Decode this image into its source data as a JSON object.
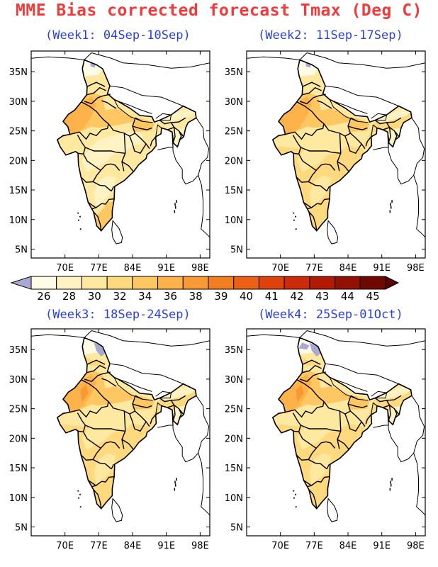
{
  "title": "MME Bias corrected forecast Tmax (Deg C)",
  "panels": [
    {
      "id": "week1",
      "label": "(Week1: 04Sep-10Sep)"
    },
    {
      "id": "week2",
      "label": "(Week2: 11Sep-17Sep)"
    },
    {
      "id": "week3",
      "label": "(Week3: 18Sep-24Sep)"
    },
    {
      "id": "week4",
      "label": "(Week4: 25Sep-01Oct)"
    }
  ],
  "axes": {
    "lat_labels": [
      "5N",
      "10N",
      "15N",
      "20N",
      "25N",
      "30N",
      "35N"
    ],
    "lat_values": [
      5,
      10,
      15,
      20,
      25,
      30,
      35
    ],
    "lon_labels": [
      "70E",
      "77E",
      "84E",
      "91E",
      "98E"
    ],
    "lon_values": [
      70,
      77,
      84,
      91,
      98
    ],
    "lon_range": [
      63,
      100
    ],
    "lat_range": [
      3.5,
      38.5
    ]
  },
  "colorbar": {
    "levels": [
      "26",
      "28",
      "30",
      "32",
      "34",
      "36",
      "38",
      "39",
      "40",
      "41",
      "42",
      "43",
      "44",
      "45"
    ],
    "below_color": "#a9a9d4",
    "colors": [
      "#fffbe6",
      "#fff3c4",
      "#ffe8a0",
      "#ffd97e",
      "#ffc761",
      "#fdb24a",
      "#f89a33",
      "#f27e22",
      "#eb6014",
      "#e0420c",
      "#cc2a08",
      "#b21a06",
      "#931004",
      "#700802"
    ],
    "above_color": "#5a0000"
  }
}
